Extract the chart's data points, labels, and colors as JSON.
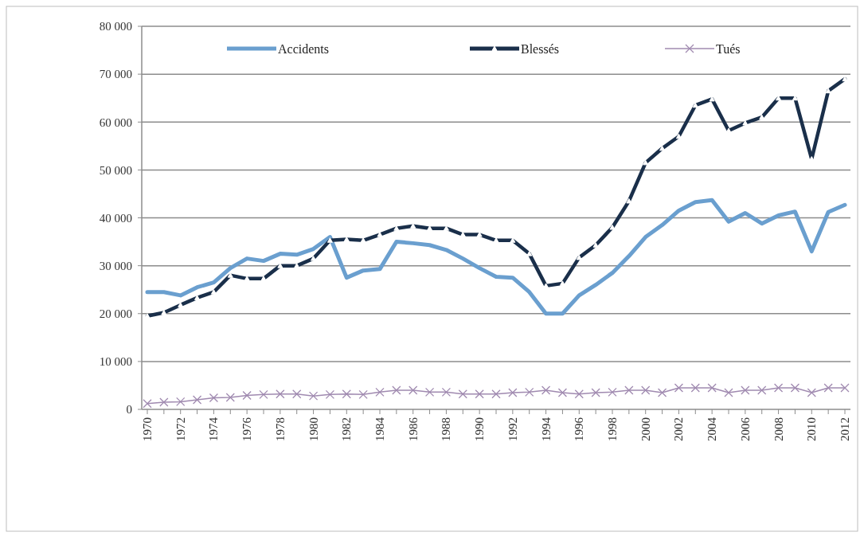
{
  "chart_data": {
    "type": "line",
    "categories": [
      "1970",
      null,
      "1972",
      null,
      "1974",
      null,
      "1976",
      null,
      "1978",
      null,
      "1980",
      null,
      "1982",
      null,
      "1984",
      null,
      "1986",
      null,
      "1988",
      null,
      "1990",
      null,
      "1992",
      null,
      "1994",
      null,
      "1996",
      null,
      "1998",
      null,
      "2000",
      null,
      "2002",
      null,
      "2004",
      null,
      "2006",
      null,
      "2008",
      null,
      "2010",
      null,
      "2012"
    ],
    "series": [
      {
        "name": "Accidents",
        "color": "#6a9fcf",
        "marker": "none",
        "values": [
          24500,
          24500,
          23800,
          25500,
          26500,
          29500,
          31500,
          31000,
          32500,
          32300,
          33500,
          36000,
          27500,
          29000,
          29300,
          35000,
          34700,
          34300,
          33300,
          31500,
          29500,
          27700,
          27500,
          24500,
          20000,
          20000,
          23800,
          26000,
          28500,
          32000,
          36000,
          38500,
          41500,
          43300,
          43700,
          39200,
          41000,
          38800,
          40500,
          41300,
          33000,
          41200,
          42700
        ]
      },
      {
        "name": "Blessés",
        "color": "#1a2f4a",
        "marker": "triangle",
        "values": [
          19500,
          20200,
          21800,
          23300,
          24500,
          28000,
          27300,
          27300,
          30000,
          30000,
          31500,
          35300,
          35500,
          35300,
          36500,
          37800,
          38300,
          37800,
          37800,
          36500,
          36500,
          35300,
          35300,
          32500,
          25800,
          26300,
          31700,
          34300,
          38000,
          43500,
          51500,
          54500,
          57000,
          63500,
          64800,
          58200,
          59800,
          61000,
          65000,
          65000,
          52300,
          66500,
          69000
        ]
      },
      {
        "name": "Tués",
        "color": "#a08ab0",
        "marker": "cross",
        "values": [
          1200,
          1500,
          1600,
          2000,
          2400,
          2500,
          2900,
          3100,
          3200,
          3200,
          2800,
          3100,
          3200,
          3100,
          3600,
          4000,
          4000,
          3600,
          3600,
          3200,
          3200,
          3200,
          3500,
          3600,
          4000,
          3500,
          3200,
          3500,
          3600,
          4000,
          4000,
          3500,
          4500,
          4500,
          4500,
          3500,
          4000,
          4000,
          4500,
          4500,
          3500,
          4500,
          4500
        ]
      }
    ],
    "ylim": [
      0,
      80000
    ],
    "yticks": [
      0,
      {
        "value": 10000,
        "label": "10 000"
      },
      {
        "value": 20000,
        "label": "20 000"
      },
      {
        "value": 30000,
        "label": "30 000"
      },
      {
        "value": 40000,
        "label": "40 000"
      },
      {
        "value": 50000,
        "label": "50 000"
      },
      {
        "value": 60000,
        "label": "60 000"
      },
      {
        "value": 70000,
        "label": "70 000"
      },
      {
        "value": 80000,
        "label": "80 000"
      }
    ],
    "grid": "y",
    "legend": "top"
  }
}
